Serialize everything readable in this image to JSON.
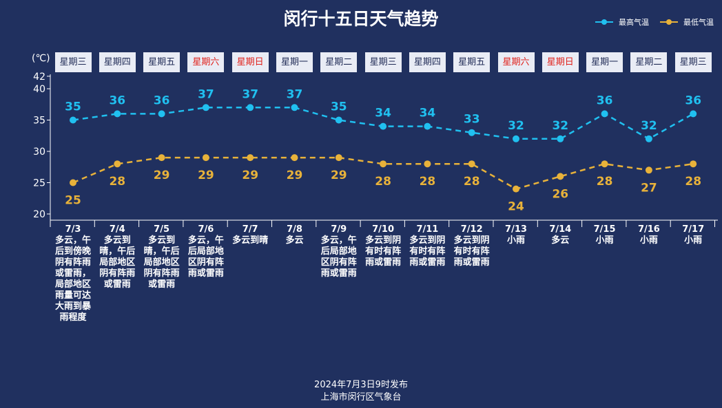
{
  "title": "闵行十五日天气趋势",
  "legend": {
    "high": "最高气温",
    "low": "最低气温"
  },
  "colors": {
    "high": "#20c0f0",
    "low": "#e8b23a",
    "background": "#20305f",
    "weekend": "#e0201a"
  },
  "y_unit": "(℃)",
  "footer": {
    "line1": "2024年7月3日9时发布",
    "line2": "上海市闵行区气象台"
  },
  "days": [
    {
      "weekday": "星期三",
      "weekend": false,
      "date": "7/3",
      "desc": "多云，午后到傍晚阴有阵雨或雷雨，局部地区雨量可达大雨到暴雨程度"
    },
    {
      "weekday": "星期四",
      "weekend": false,
      "date": "7/4",
      "desc": "多云到晴，午后局部地区阴有阵雨或雷雨"
    },
    {
      "weekday": "星期五",
      "weekend": false,
      "date": "7/5",
      "desc": "多云到晴，午后局部地区阴有阵雨或雷雨"
    },
    {
      "weekday": "星期六",
      "weekend": true,
      "date": "7/6",
      "desc": "多云，午后局部地区阴有阵雨或雷雨"
    },
    {
      "weekday": "星期日",
      "weekend": true,
      "date": "7/7",
      "desc": "多云到晴"
    },
    {
      "weekday": "星期一",
      "weekend": false,
      "date": "7/8",
      "desc": "多云"
    },
    {
      "weekday": "星期二",
      "weekend": false,
      "date": "7/9",
      "desc": "多云，午后局部地区阴有阵雨或雷雨"
    },
    {
      "weekday": "星期三",
      "weekend": false,
      "date": "7/10",
      "desc": "多云到阴有时有阵雨或雷雨"
    },
    {
      "weekday": "星期四",
      "weekend": false,
      "date": "7/11",
      "desc": "多云到阴有时有阵雨或雷雨"
    },
    {
      "weekday": "星期五",
      "weekend": false,
      "date": "7/12",
      "desc": "多云到阴有时有阵雨或雷雨"
    },
    {
      "weekday": "星期六",
      "weekend": true,
      "date": "7/13",
      "desc": "小雨"
    },
    {
      "weekday": "星期日",
      "weekend": true,
      "date": "7/14",
      "desc": "多云"
    },
    {
      "weekday": "星期一",
      "weekend": false,
      "date": "7/15",
      "desc": "小雨"
    },
    {
      "weekday": "星期二",
      "weekend": false,
      "date": "7/16",
      "desc": "小雨"
    },
    {
      "weekday": "星期三",
      "weekend": false,
      "date": "7/17",
      "desc": "小雨"
    }
  ],
  "chart_data": {
    "type": "line",
    "title": "闵行十五日天气趋势",
    "x": [
      "7/3",
      "7/4",
      "7/5",
      "7/6",
      "7/7",
      "7/8",
      "7/9",
      "7/10",
      "7/11",
      "7/12",
      "7/13",
      "7/14",
      "7/15",
      "7/16",
      "7/17"
    ],
    "series": [
      {
        "name": "最高气温",
        "values": [
          35,
          36,
          36,
          37,
          37,
          37,
          35,
          34,
          34,
          33,
          32,
          32,
          36,
          32,
          36
        ]
      },
      {
        "name": "最低气温",
        "values": [
          25,
          28,
          29,
          29,
          29,
          29,
          29,
          28,
          28,
          28,
          24,
          26,
          28,
          27,
          28
        ]
      }
    ],
    "ylabel": "(℃)",
    "yticks": [
      20,
      25,
      30,
      35,
      40,
      42
    ],
    "ylim": [
      20,
      42
    ],
    "grid": false,
    "legend_position": "top-right"
  }
}
